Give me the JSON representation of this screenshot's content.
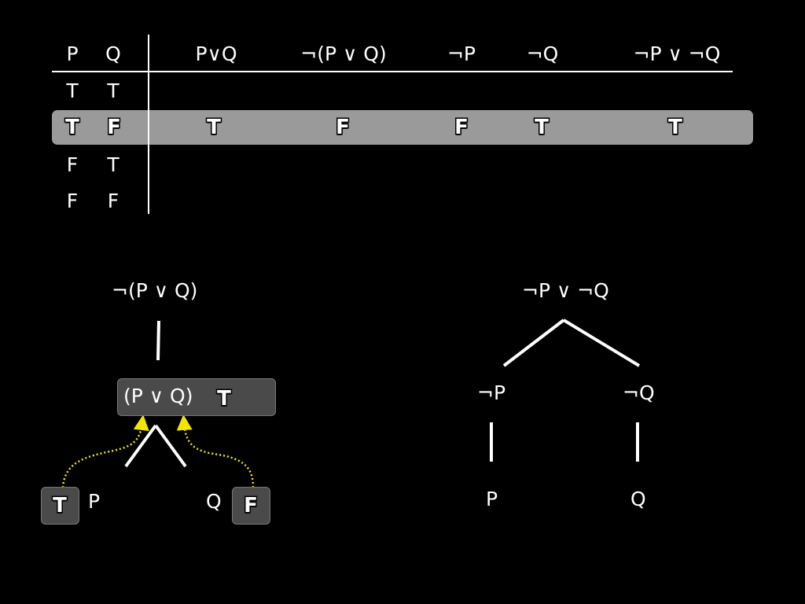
{
  "truth_table": {
    "headers": [
      "P",
      "Q",
      "P∨Q",
      "¬(P ∨ Q)",
      "¬P",
      "¬Q",
      "¬P ∨ ¬Q"
    ],
    "rows": [
      [
        "T",
        "T"
      ],
      [
        "T",
        "F",
        "T",
        "F",
        "F",
        "T",
        "T"
      ],
      [
        "F",
        "T"
      ],
      [
        "F",
        "F"
      ]
    ],
    "highlighted_row": 1
  },
  "left_tree": {
    "root_label": "¬(P ∨ Q)",
    "node_label": "(P ∨ Q)",
    "node_value": "T",
    "leaf_left_label": "P",
    "leaf_left_value": "T",
    "leaf_right_label": "Q",
    "leaf_right_value": "F",
    "arrow_color": "#f2e600"
  },
  "right_tree": {
    "root_label": "¬P ∨ ¬Q",
    "left_child": "¬P",
    "right_child": "¬Q",
    "left_leaf": "P",
    "right_leaf": "Q"
  }
}
